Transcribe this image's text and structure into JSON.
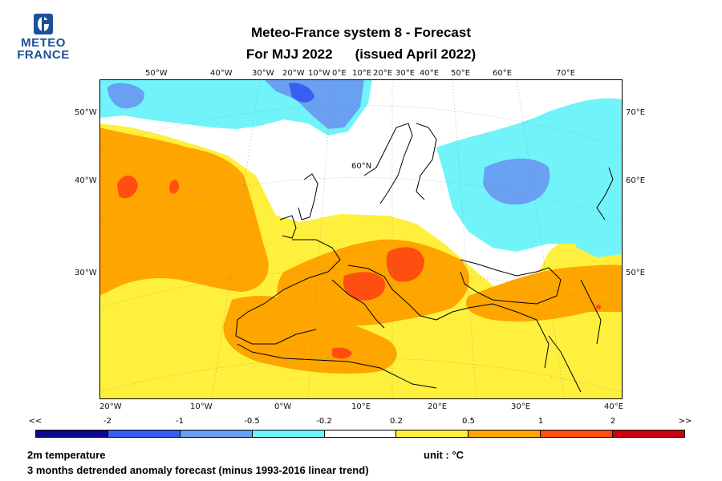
{
  "logo": {
    "line1": "METEO",
    "line2": "FRANCE"
  },
  "title": {
    "line1": "Meteo-France system 8  -  Forecast",
    "line2a": "For MJJ 2022",
    "line2b": "(issued April 2022)"
  },
  "top_lon_labels": [
    "50°W",
    "40°W",
    "30°W",
    "20°W",
    "10°W",
    "0°E",
    "10°E",
    "20°E",
    "30°E",
    "40°E",
    "50°E",
    "60°E",
    "70°E"
  ],
  "bottom_lon_labels": [
    "20°W",
    "10°W",
    "0°W",
    "10°E",
    "20°E",
    "30°E",
    "40°E"
  ],
  "left_lat_labels": [
    "50°W",
    "40°W",
    "30°W"
  ],
  "right_lat_labels": [
    "70°E",
    "60°E",
    "50°E"
  ],
  "map_lat_label": "60°N",
  "legend": {
    "ticks": [
      "<<",
      "-2",
      "-1",
      "-0.5",
      "-0.2",
      "0.2",
      "0.5",
      "1",
      "2",
      ">>"
    ],
    "colors": [
      "#0a0a8c",
      "#3a5ef0",
      "#6aa0f2",
      "#70f4fa",
      "#ffffff",
      "#fef03c",
      "#fea500",
      "#fe4f10",
      "#c80014"
    ]
  },
  "footer": {
    "variable": "2m temperature",
    "unit": "unit : °C",
    "description": "3 months detrended anomaly forecast (minus 1993-2016 linear trend)"
  }
}
